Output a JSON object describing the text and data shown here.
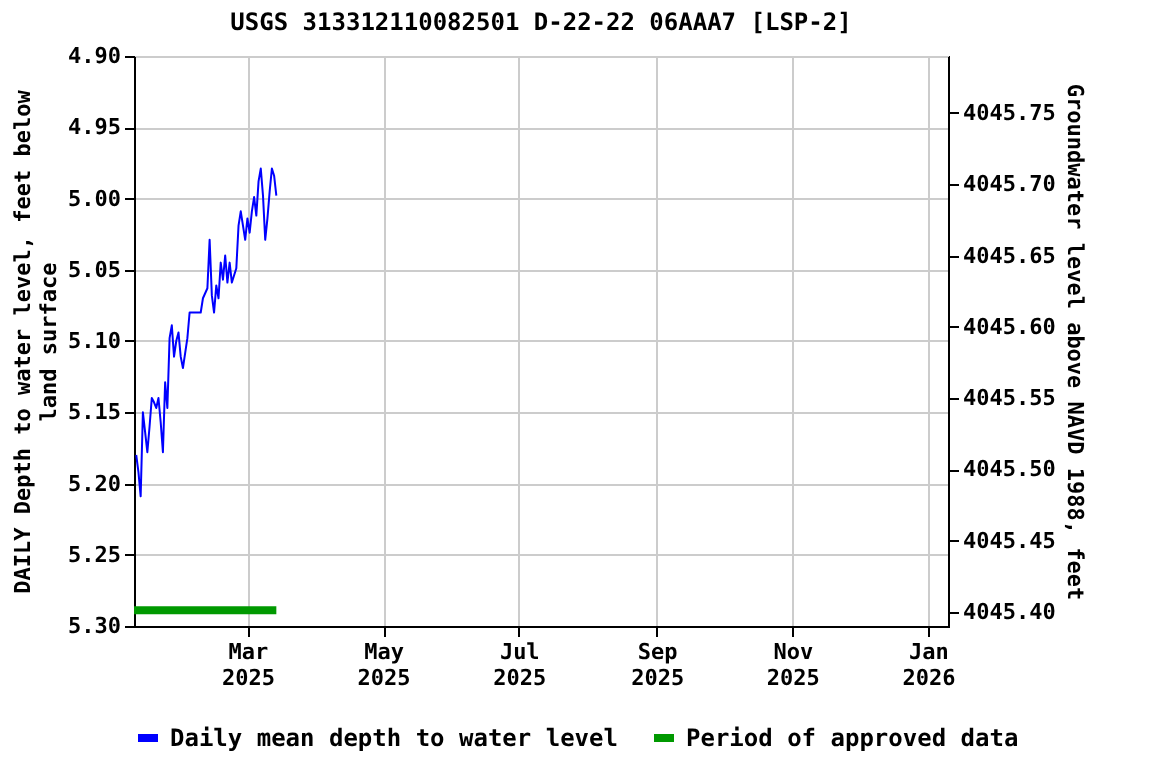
{
  "chart_data": {
    "type": "line",
    "title": "USGS 313312110082501 D-22-22 06AAA7 [LSP-2]",
    "ylabel": "DAILY Depth to water level, feet below land surface",
    "y2label": "Groundwater level above NAVD 1988, feet",
    "xlim": [
      "2025-01-09",
      "2026-01-10"
    ],
    "xticks": [
      {
        "value": "2025-03-01",
        "label": "Mar 2025"
      },
      {
        "value": "2025-05-01",
        "label": "May 2025"
      },
      {
        "value": "2025-07-01",
        "label": "Jul 2025"
      },
      {
        "value": "2025-09-01",
        "label": "Sep 2025"
      },
      {
        "value": "2025-11-01",
        "label": "Nov 2025"
      },
      {
        "value": "2026-01-01",
        "label": "Jan 2026"
      }
    ],
    "ylim": [
      5.3,
      4.9
    ],
    "yticks": [
      {
        "value": 4.9,
        "label": "4.90"
      },
      4.95,
      {
        "value": 5,
        "label": "5.00"
      },
      5.05,
      {
        "value": 5.1,
        "label": "5.10"
      },
      5.15,
      {
        "value": 5.2,
        "label": "5.20"
      },
      5.25,
      {
        "value": 5.3,
        "label": "5.30"
      }
    ],
    "y2lim": [
      4045.39,
      4045.79
    ],
    "y2ticks": [
      {
        "value": 4045.4,
        "label": "4045.40"
      },
      4045.45,
      {
        "value": 4045.5,
        "label": "4045.50"
      },
      4045.55,
      {
        "value": 4045.6,
        "label": "4045.60"
      },
      4045.65,
      {
        "value": 4045.7,
        "label": "4045.70"
      },
      4045.75
    ],
    "grid": true,
    "legend": "bottom",
    "line_style": "solid",
    "marker": "none",
    "series": [
      {
        "name": "Daily mean depth to water level",
        "color": "#0000ff",
        "x": [
          "2025-01-10",
          "2025-01-11",
          "2025-01-12",
          "2025-01-13",
          "2025-01-14",
          "2025-01-15",
          "2025-01-16",
          "2025-01-17",
          "2025-01-18",
          "2025-01-19",
          "2025-01-20",
          "2025-01-21",
          "2025-01-22",
          "2025-01-23",
          "2025-01-24",
          "2025-01-25",
          "2025-01-26",
          "2025-01-27",
          "2025-01-28",
          "2025-01-29",
          "2025-01-30",
          "2025-01-31",
          "2025-02-02",
          "2025-02-03",
          "2025-02-08",
          "2025-02-09",
          "2025-02-11",
          "2025-02-12",
          "2025-02-13",
          "2025-02-14",
          "2025-02-15",
          "2025-02-16",
          "2025-02-17",
          "2025-02-18",
          "2025-02-19",
          "2025-02-20",
          "2025-02-21",
          "2025-02-22",
          "2025-02-24",
          "2025-02-25",
          "2025-02-26",
          "2025-02-27",
          "2025-02-28",
          "2025-03-01",
          "2025-03-02",
          "2025-03-03",
          "2025-03-04",
          "2025-03-05",
          "2025-03-06",
          "2025-03-07",
          "2025-03-08",
          "2025-03-09",
          "2025-03-10",
          "2025-03-11",
          "2025-03-12",
          "2025-03-13",
          "2025-03-14"
        ],
        "values": [
          5.18,
          5.192,
          5.209,
          5.15,
          5.164,
          5.178,
          5.16,
          5.14,
          5.143,
          5.147,
          5.14,
          5.157,
          5.178,
          5.129,
          5.147,
          5.098,
          5.089,
          5.111,
          5.1,
          5.094,
          5.111,
          5.119,
          5.098,
          5.08,
          5.08,
          5.07,
          5.063,
          5.029,
          5.068,
          5.08,
          5.061,
          5.07,
          5.045,
          5.057,
          5.04,
          5.059,
          5.045,
          5.059,
          5.049,
          5.019,
          5.009,
          5.019,
          5.029,
          5.014,
          5.024,
          5.009,
          4.999,
          5.012,
          4.988,
          4.979,
          4.998,
          5.029,
          5.014,
          4.995,
          4.979,
          4.984,
          4.998
        ]
      },
      {
        "name": "Period of approved data",
        "color": "#009900",
        "x": [
          "2025-01-09",
          "2025-03-14"
        ],
        "values": [
          5.289,
          5.289
        ]
      }
    ]
  }
}
